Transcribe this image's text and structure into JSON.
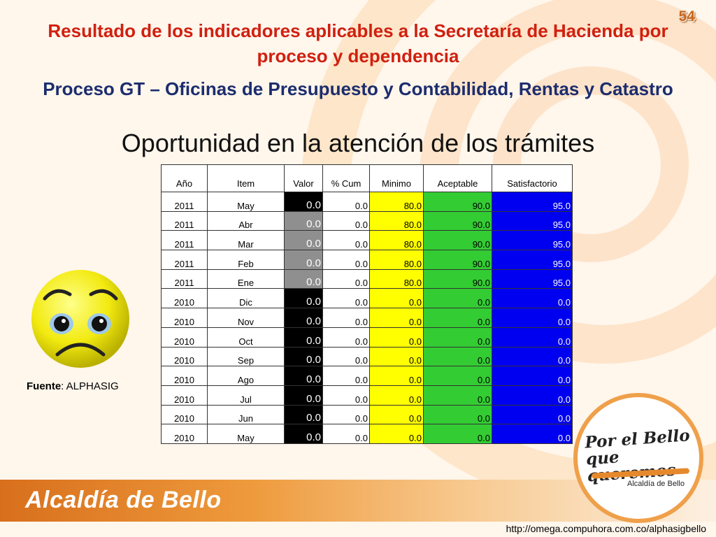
{
  "page_number": "54",
  "title_red": "Resultado de los indicadores aplicables a la Secretaría de Hacienda por proceso y dependencia",
  "title_blue": "Proceso GT – Oficinas de Presupuesto y Contabilidad, Rentas y Catastro",
  "subtitle": "Oportunidad en la atención de los trámites",
  "table": {
    "headers": [
      "Año",
      "Item",
      "Valor",
      "% Cum",
      "Minimo",
      "Aceptable",
      "Satisfactorio"
    ],
    "rows": [
      {
        "year": "2011",
        "item": "May",
        "valor": "0.0",
        "cum": "0.0",
        "minimo": "80.0",
        "aceptable": "90.0",
        "satisfactorio": "95.0",
        "valor_shade": "dark"
      },
      {
        "year": "2011",
        "item": "Abr",
        "valor": "0.0",
        "cum": "0.0",
        "minimo": "80.0",
        "aceptable": "90.0",
        "satisfactorio": "95.0",
        "valor_shade": "gray"
      },
      {
        "year": "2011",
        "item": "Mar",
        "valor": "0.0",
        "cum": "0.0",
        "minimo": "80.0",
        "aceptable": "90.0",
        "satisfactorio": "95.0",
        "valor_shade": "gray"
      },
      {
        "year": "2011",
        "item": "Feb",
        "valor": "0.0",
        "cum": "0.0",
        "minimo": "80.0",
        "aceptable": "90.0",
        "satisfactorio": "95.0",
        "valor_shade": "gray"
      },
      {
        "year": "2011",
        "item": "Ene",
        "valor": "0.0",
        "cum": "0.0",
        "minimo": "80.0",
        "aceptable": "90.0",
        "satisfactorio": "95.0",
        "valor_shade": "gray"
      },
      {
        "year": "2010",
        "item": "Dic",
        "valor": "0.0",
        "cum": "0.0",
        "minimo": "0.0",
        "aceptable": "0.0",
        "satisfactorio": "0.0",
        "valor_shade": "dark"
      },
      {
        "year": "2010",
        "item": "Nov",
        "valor": "0.0",
        "cum": "0.0",
        "minimo": "0.0",
        "aceptable": "0.0",
        "satisfactorio": "0.0",
        "valor_shade": "dark"
      },
      {
        "year": "2010",
        "item": "Oct",
        "valor": "0.0",
        "cum": "0.0",
        "minimo": "0.0",
        "aceptable": "0.0",
        "satisfactorio": "0.0",
        "valor_shade": "dark"
      },
      {
        "year": "2010",
        "item": "Sep",
        "valor": "0.0",
        "cum": "0.0",
        "minimo": "0.0",
        "aceptable": "0.0",
        "satisfactorio": "0.0",
        "valor_shade": "dark"
      },
      {
        "year": "2010",
        "item": "Ago",
        "valor": "0.0",
        "cum": "0.0",
        "minimo": "0.0",
        "aceptable": "0.0",
        "satisfactorio": "0.0",
        "valor_shade": "dark"
      },
      {
        "year": "2010",
        "item": "Jul",
        "valor": "0.0",
        "cum": "0.0",
        "minimo": "0.0",
        "aceptable": "0.0",
        "satisfactorio": "0.0",
        "valor_shade": "dark"
      },
      {
        "year": "2010",
        "item": "Jun",
        "valor": "0.0",
        "cum": "0.0",
        "minimo": "0.0",
        "aceptable": "0.0",
        "satisfactorio": "0.0",
        "valor_shade": "dark"
      },
      {
        "year": "2010",
        "item": "May",
        "valor": "0.0",
        "cum": "0.0",
        "minimo": "0.0",
        "aceptable": "0.0",
        "satisfactorio": "0.0",
        "valor_shade": "dark"
      }
    ]
  },
  "fuente": {
    "label": "Fuente",
    "value": ": ALPHASIG"
  },
  "smiley_icon": "sad-face-icon",
  "logo": {
    "line1": "Por el Bello",
    "line2": "que queremos",
    "sub": "Alcaldía de Bello"
  },
  "brand": "Alcaldía de Bello",
  "url": "http://omega.compuhora.com.co/alphasigbello",
  "colors": {
    "title_red": "#d02010",
    "title_blue": "#1c2d6e",
    "valor_dark": "#000000",
    "valor_gray": "#8f8f8f",
    "minimo": "#ffff00",
    "aceptable": "#33cc33",
    "satisfactorio": "#0000f0",
    "accent_orange": "#e6892d"
  }
}
